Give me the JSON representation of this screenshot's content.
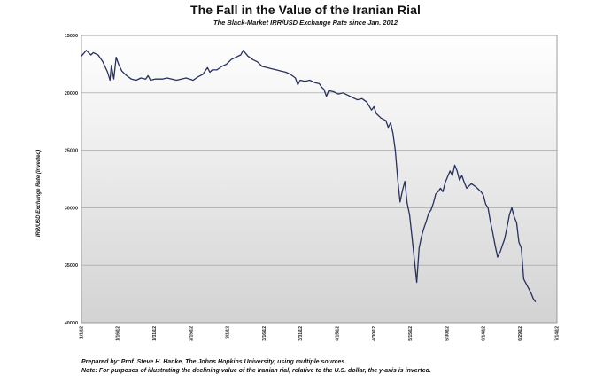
{
  "chart_data": {
    "type": "line",
    "title": "The Fall in the Value of the Iranian Rial",
    "subtitle": "The Black-Market IRR/USD Exchange Rate since Jan. 2012",
    "ylabel": "IRR/USD Exchange Rate (Inverted)",
    "y_ticks": [
      "15000",
      "20000",
      "25000",
      "30000",
      "35000",
      "40000"
    ],
    "ylim": [
      15000,
      40000
    ],
    "y_inverted": true,
    "grid": true,
    "x_ticks": [
      "1/1/12",
      "1/16/12",
      "1/31/12",
      "2/15/12",
      "3/1/12",
      "3/16/12",
      "3/31/12",
      "4/15/12",
      "4/30/12",
      "5/15/12",
      "5/30/12",
      "6/14/12",
      "6/29/12",
      "7/14/12"
    ],
    "color": "#27305e",
    "series": [
      {
        "values": [
          [
            0.0,
            16800
          ],
          [
            0.01,
            16300
          ],
          [
            0.02,
            16700
          ],
          [
            0.025,
            16500
          ],
          [
            0.035,
            16700
          ],
          [
            0.045,
            17300
          ],
          [
            0.055,
            18200
          ],
          [
            0.06,
            18900
          ],
          [
            0.063,
            17600
          ],
          [
            0.068,
            18800
          ],
          [
            0.073,
            16900
          ],
          [
            0.078,
            17500
          ],
          [
            0.085,
            18100
          ],
          [
            0.095,
            18500
          ],
          [
            0.105,
            18800
          ],
          [
            0.115,
            18900
          ],
          [
            0.125,
            18700
          ],
          [
            0.135,
            18800
          ],
          [
            0.14,
            18500
          ],
          [
            0.145,
            18900
          ],
          [
            0.155,
            18800
          ],
          [
            0.17,
            18800
          ],
          [
            0.18,
            18700
          ],
          [
            0.19,
            18800
          ],
          [
            0.2,
            18900
          ],
          [
            0.21,
            18800
          ],
          [
            0.22,
            18700
          ],
          [
            0.235,
            18900
          ],
          [
            0.245,
            18600
          ],
          [
            0.255,
            18400
          ],
          [
            0.265,
            17800
          ],
          [
            0.27,
            18200
          ],
          [
            0.275,
            18000
          ],
          [
            0.285,
            18000
          ],
          [
            0.295,
            17700
          ],
          [
            0.305,
            17500
          ],
          [
            0.315,
            17100
          ],
          [
            0.325,
            16900
          ],
          [
            0.335,
            16700
          ],
          [
            0.34,
            16300
          ],
          [
            0.35,
            16800
          ],
          [
            0.36,
            17100
          ],
          [
            0.37,
            17300
          ],
          [
            0.38,
            17700
          ],
          [
            0.39,
            17800
          ],
          [
            0.4,
            17900
          ],
          [
            0.41,
            18000
          ],
          [
            0.42,
            18100
          ],
          [
            0.43,
            18200
          ],
          [
            0.44,
            18400
          ],
          [
            0.45,
            18700
          ],
          [
            0.455,
            19300
          ],
          [
            0.46,
            18900
          ],
          [
            0.47,
            19000
          ],
          [
            0.48,
            18900
          ],
          [
            0.49,
            19100
          ],
          [
            0.5,
            19200
          ],
          [
            0.505,
            19500
          ],
          [
            0.51,
            19700
          ],
          [
            0.515,
            20300
          ],
          [
            0.52,
            19800
          ],
          [
            0.53,
            19900
          ],
          [
            0.54,
            20100
          ],
          [
            0.55,
            20000
          ],
          [
            0.56,
            20200
          ],
          [
            0.57,
            20400
          ],
          [
            0.58,
            20600
          ],
          [
            0.59,
            20500
          ],
          [
            0.6,
            20800
          ],
          [
            0.61,
            21500
          ],
          [
            0.615,
            21200
          ],
          [
            0.62,
            21800
          ],
          [
            0.63,
            22200
          ],
          [
            0.64,
            22400
          ],
          [
            0.645,
            23000
          ],
          [
            0.65,
            22600
          ],
          [
            0.655,
            23500
          ],
          [
            0.66,
            25000
          ],
          [
            0.665,
            27500
          ],
          [
            0.67,
            29500
          ],
          [
            0.675,
            28500
          ],
          [
            0.68,
            27700
          ],
          [
            0.685,
            29600
          ],
          [
            0.69,
            30600
          ],
          [
            0.695,
            32500
          ],
          [
            0.7,
            34500
          ],
          [
            0.705,
            36500
          ],
          [
            0.71,
            33500
          ],
          [
            0.715,
            32500
          ],
          [
            0.72,
            31800
          ],
          [
            0.725,
            31200
          ],
          [
            0.73,
            30500
          ],
          [
            0.735,
            30200
          ],
          [
            0.74,
            29600
          ],
          [
            0.745,
            28800
          ],
          [
            0.75,
            28600
          ],
          [
            0.755,
            28300
          ],
          [
            0.76,
            28600
          ],
          [
            0.765,
            27800
          ],
          [
            0.77,
            27300
          ],
          [
            0.775,
            26800
          ],
          [
            0.78,
            27200
          ],
          [
            0.785,
            26300
          ],
          [
            0.79,
            26800
          ],
          [
            0.795,
            27600
          ],
          [
            0.8,
            27200
          ],
          [
            0.805,
            27800
          ],
          [
            0.81,
            28300
          ],
          [
            0.815,
            28100
          ],
          [
            0.82,
            27900
          ],
          [
            0.83,
            28200
          ],
          [
            0.84,
            28600
          ],
          [
            0.845,
            28900
          ],
          [
            0.85,
            29700
          ],
          [
            0.855,
            30000
          ],
          [
            0.86,
            31200
          ],
          [
            0.865,
            32200
          ],
          [
            0.87,
            33300
          ],
          [
            0.875,
            34300
          ],
          [
            0.88,
            33900
          ],
          [
            0.885,
            33300
          ],
          [
            0.89,
            32700
          ],
          [
            0.895,
            31700
          ],
          [
            0.9,
            30600
          ],
          [
            0.905,
            30000
          ],
          [
            0.91,
            30800
          ],
          [
            0.915,
            31300
          ],
          [
            0.92,
            33000
          ],
          [
            0.925,
            33500
          ],
          [
            0.93,
            36200
          ],
          [
            0.935,
            36600
          ],
          [
            0.94,
            37000
          ],
          [
            0.945,
            37400
          ],
          [
            0.95,
            37900
          ],
          [
            0.955,
            38200
          ]
        ]
      }
    ]
  },
  "footnotes": {
    "line1": "Prepared by: Prof. Steve H. Hanke, The Johns Hopkins University, using multiple sources.",
    "line2": "Note: For purposes of illustrating the declining value of the Iranian rial, relative to the U.S. dollar, the y-axis is inverted."
  }
}
